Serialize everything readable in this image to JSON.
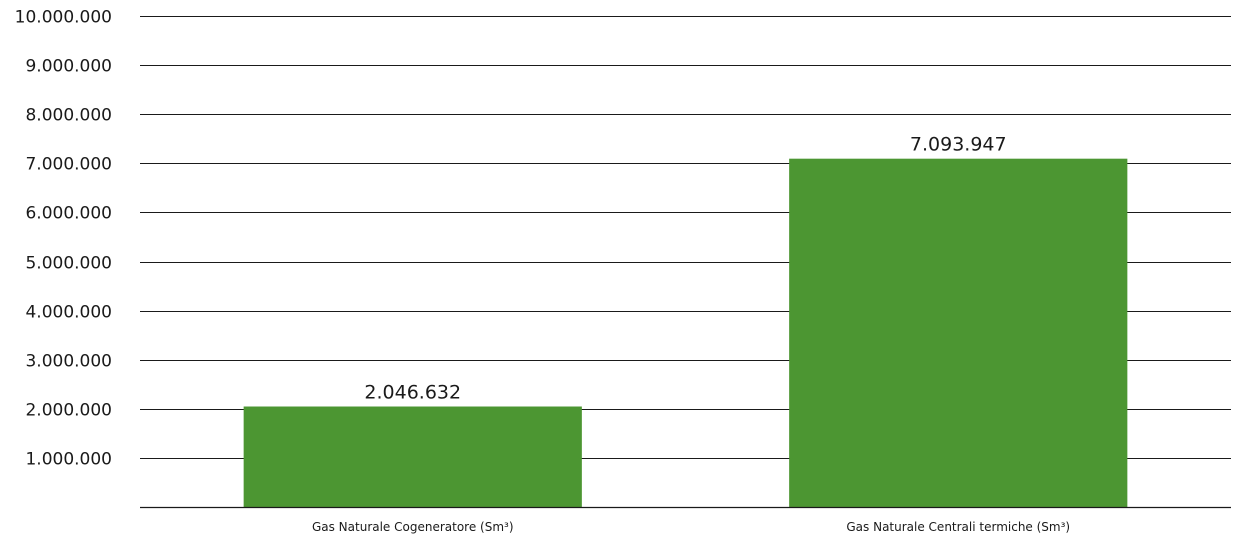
{
  "chart_data": {
    "type": "bar",
    "categories": [
      "Gas Naturale Cogeneratore (Sm³)",
      "Gas Naturale Centrali termiche (Sm³)"
    ],
    "values": [
      2046632,
      7093947
    ],
    "value_labels": [
      "2.046.632",
      "7.093.947"
    ],
    "yticks": [
      1000000,
      2000000,
      3000000,
      4000000,
      5000000,
      6000000,
      7000000,
      8000000,
      9000000,
      10000000
    ],
    "ytick_labels": [
      "1.000.000",
      "2.000.000",
      "3.000.000",
      "4.000.000",
      "5.000.000",
      "6.000.000",
      "7.000.000",
      "8.000.000",
      "9.000.000",
      "10.000.000"
    ],
    "ylim": [
      0,
      10000000
    ],
    "grid": true,
    "legend": "none",
    "title": "",
    "xlabel": "",
    "ylabel": "",
    "bar_color": "#4c9632"
  }
}
